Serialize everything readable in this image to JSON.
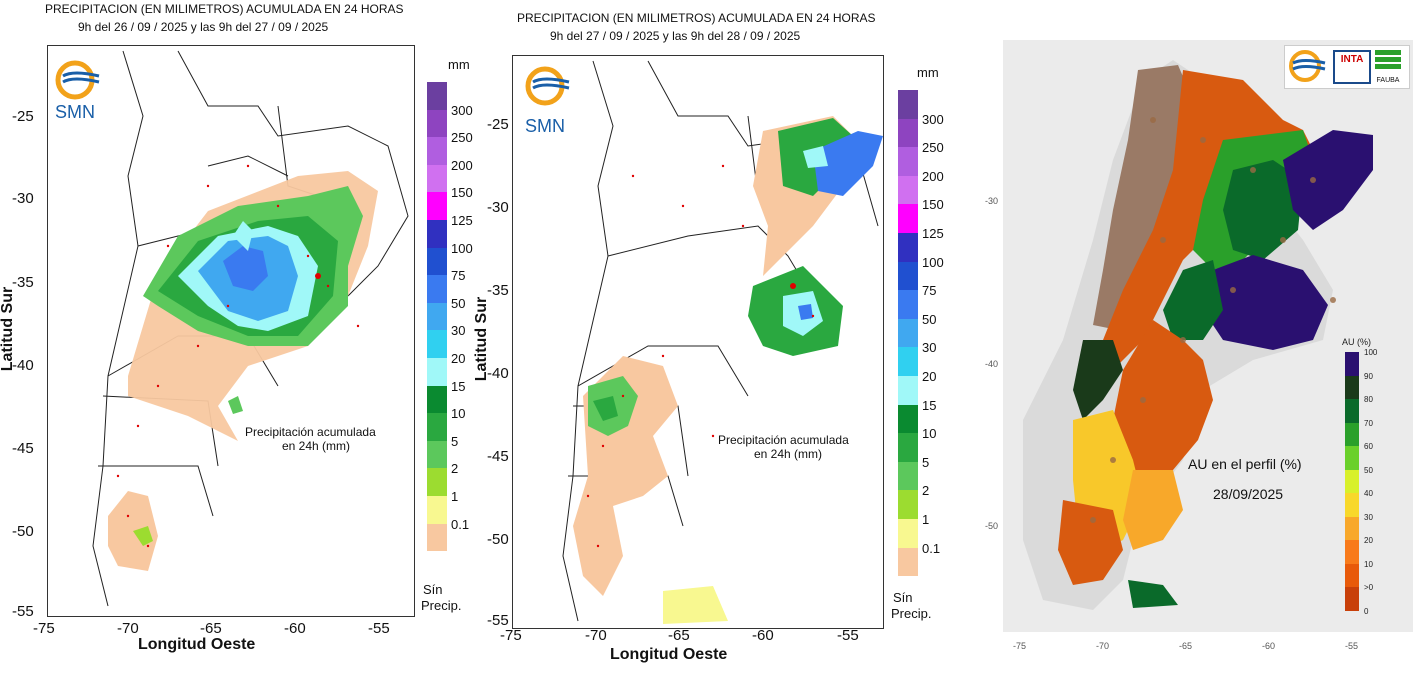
{
  "panel1": {
    "title_line1": "PRECIPITACION (EN MILIMETROS) ACUMULADA EN 24 HORAS",
    "title_line2": "9h del 26 / 09 / 2025  y las 9h del 27 / 09 / 2025",
    "logo_text": "SMN",
    "note_line1": "Precipitación acumulada",
    "note_line2": "en 24h (mm)",
    "legend_unit": "mm",
    "ylabel": "Latitud Sur",
    "xlabel": "Longitud Oeste",
    "yticks": [
      "-25",
      "-30",
      "-35",
      "-40",
      "-45",
      "-50",
      "-55"
    ],
    "xticks": [
      "-75",
      "-70",
      "-65",
      "-60",
      "-55"
    ],
    "legend_labels": [
      "300",
      "250",
      "200",
      "150",
      "125",
      "100",
      "75",
      "50",
      "30",
      "20",
      "15",
      "10",
      "5",
      "2",
      "1",
      "0.1"
    ],
    "no_precip_1": "Sín",
    "no_precip_2": "Precip."
  },
  "panel2": {
    "title_line1": "PRECIPITACION (EN MILIMETROS) ACUMULADA EN 24 HORAS",
    "title_line2": "9h del 27 / 09 / 2025  y las 9h del 28 / 09 / 2025",
    "logo_text": "SMN",
    "note_line1": "Precipitación acumulada",
    "note_line2": "en 24h (mm)",
    "legend_unit": "mm",
    "ylabel": "Latitud Sur",
    "xlabel": "Longitud Oeste",
    "yticks": [
      "-25",
      "-30",
      "-35",
      "-40",
      "-45",
      "-50",
      "-55"
    ],
    "xticks": [
      "-75",
      "-70",
      "-65",
      "-60",
      "-55"
    ],
    "legend_labels": [
      "300",
      "250",
      "200",
      "150",
      "125",
      "100",
      "75",
      "50",
      "30",
      "20",
      "15",
      "10",
      "5",
      "2",
      "1",
      "0.1"
    ],
    "no_precip_1": "Sín",
    "no_precip_2": "Precip."
  },
  "panel3": {
    "title_line1": "AU en el perfil (%)",
    "title_line2": "28/09/2025",
    "legend_title": "AU (%)",
    "legend_labels": [
      "100",
      "90",
      "80",
      "70",
      "60",
      "50",
      "40",
      "30",
      "20",
      "10",
      ">0",
      "0"
    ],
    "logo_inta": "INTA",
    "logo_fauba": "FAUBA",
    "yticks": [
      "-30",
      "-40",
      "-50"
    ],
    "xticks": [
      "-75",
      "-70",
      "-65",
      "-60",
      "-55"
    ]
  },
  "legend_colors": [
    "#6b3fa0",
    "#8e44c0",
    "#b05ee0",
    "#d070f0",
    "#ff00ff",
    "#3030c0",
    "#2050d0",
    "#3a7af0",
    "#40a8f0",
    "#30d0f0",
    "#a0f8f8",
    "#0a8a30",
    "#2aa840",
    "#5cc85c",
    "#9cdc30",
    "#f8f890",
    "#f8c8a0"
  ],
  "au_colors": [
    "#2a1070",
    "#1a3a1a",
    "#0a6a2a",
    "#2aa02a",
    "#6ad02a",
    "#d8f02a",
    "#f8d82a",
    "#f8a82a",
    "#f87a1a",
    "#e85a0a",
    "#c8400a"
  ],
  "colors": {
    "map_line": "#222",
    "station": "#e00000",
    "smn_blue": "#1a5fa8",
    "smn_orange": "#f2a21a"
  }
}
